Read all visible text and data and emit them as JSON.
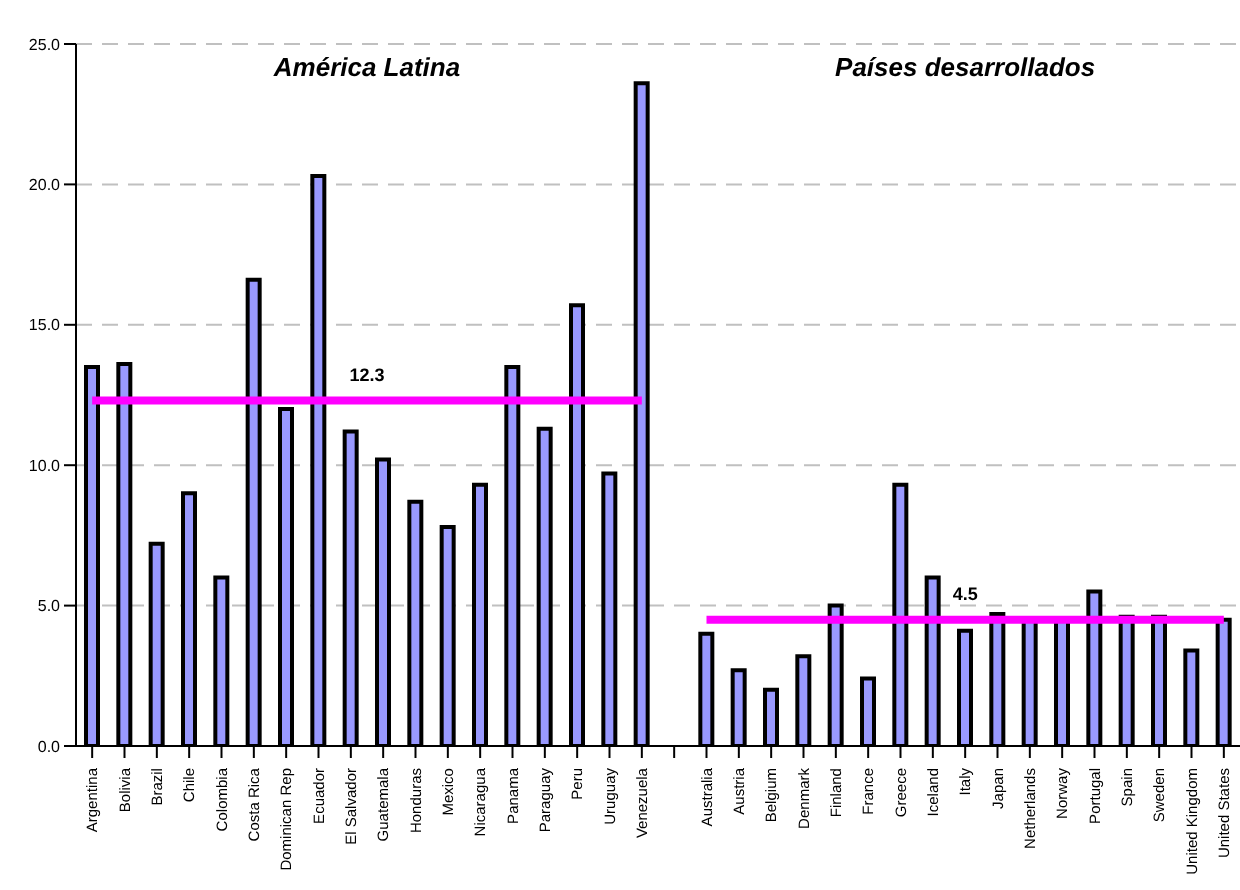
{
  "chart_data": {
    "type": "bar",
    "categories": [
      "Argentina",
      "Bolivia",
      "Brazil",
      "Chile",
      "Colombia",
      "Costa Rica",
      "Dominican Rep",
      "Ecuador",
      "El Salvador",
      "Guatemala",
      "Honduras",
      "Mexico",
      "Nicaragua",
      "Panama",
      "Paraguay",
      "Peru",
      "Uruguay",
      "Venezuela",
      null,
      "Australia",
      "Austria",
      "Belgium",
      "Denmark",
      "Finland",
      "France",
      "Greece",
      "Iceland",
      "Italy",
      "Japan",
      "Netherlands",
      "Norway",
      "Portugal",
      "Spain",
      "Sweden",
      "United Kingdom",
      "United States"
    ],
    "values": [
      13.5,
      13.6,
      7.2,
      9.0,
      6.0,
      16.6,
      12.0,
      20.3,
      11.2,
      10.2,
      8.7,
      7.8,
      9.3,
      13.5,
      11.3,
      15.7,
      9.7,
      23.6,
      null,
      4.0,
      2.7,
      2.0,
      3.2,
      5.0,
      2.4,
      9.3,
      6.0,
      4.1,
      4.7,
      4.5,
      4.5,
      5.5,
      4.6,
      4.6,
      3.4,
      4.5
    ],
    "color": "#9999ff",
    "ylim": [
      0,
      25
    ],
    "yticks": [
      {
        "value": 0,
        "label": "0.0"
      },
      {
        "value": 5,
        "label": "5.0"
      },
      {
        "value": 10,
        "label": "10.0"
      },
      {
        "value": 15,
        "label": "15.0"
      },
      {
        "value": 20,
        "label": "20.0"
      },
      {
        "value": 25,
        "label": "25.0"
      }
    ],
    "grid": "y",
    "legend": false,
    "ref_lines": [
      {
        "axis": "y",
        "value": 12.3,
        "label": "12.3",
        "color": "#ff00ff"
      },
      {
        "axis": "y",
        "value": 4.5,
        "label": "4.5",
        "color": "#ff00ff"
      }
    ],
    "annotations": [
      "América Latina",
      "Países desarrollados"
    ]
  }
}
